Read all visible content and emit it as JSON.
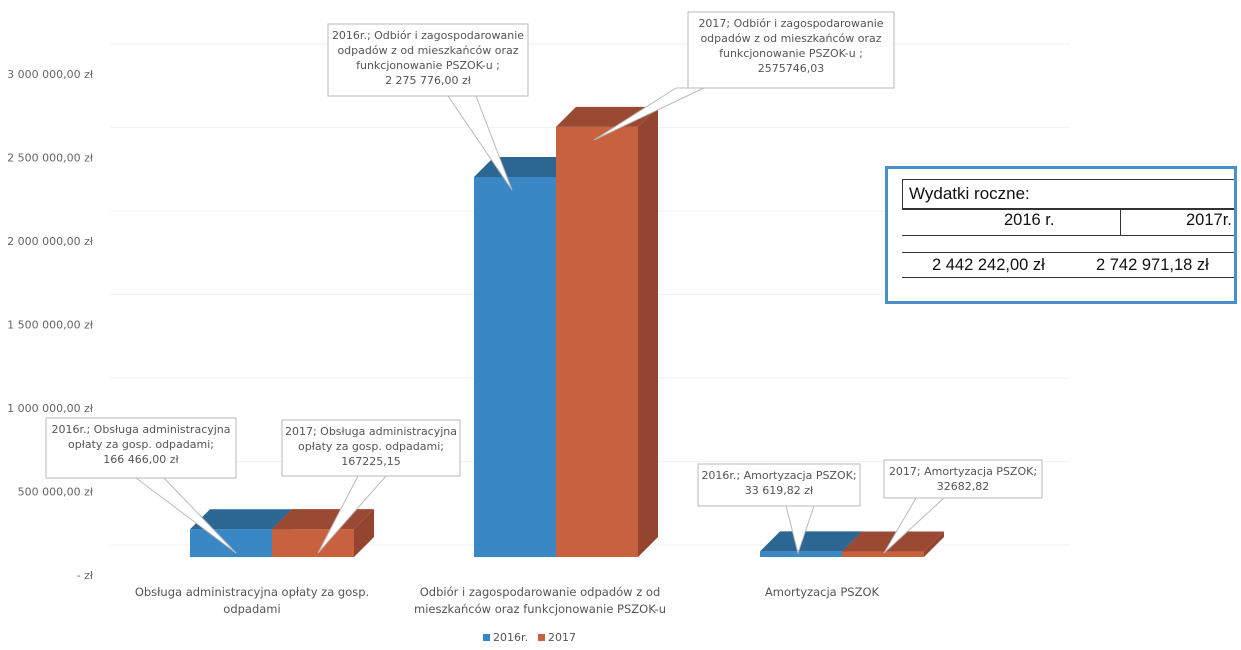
{
  "chart_data": {
    "type": "bar",
    "subtype": "3d-clustered-column",
    "categories": [
      "Obsługa administracyjna opłaty za gosp. odpadami",
      "Odbiór i zagospodarowanie odpadów z od mieszkańców oraz funkcjonowanie PSZOK-u",
      "Amortyzacja PSZOK"
    ],
    "category_labels": [
      [
        "Obsługa administracyjna opłaty za gosp.",
        "odpadami"
      ],
      [
        "Odbiór i zagospodarowanie odpadów z od",
        "mieszkańców oraz funkcjonowanie PSZOK-u"
      ],
      [
        "Amortyzacja PSZOK"
      ]
    ],
    "series": [
      {
        "name": "2016r.",
        "color": "#3a87c5",
        "top_color": "#2c6793",
        "side_color": "#2a6490",
        "values": [
          166466.0,
          2275776.0,
          33619.82
        ]
      },
      {
        "name": "2017",
        "color": "#c8623e",
        "top_color": "#9a4a33",
        "side_color": "#93452f",
        "values": [
          167225.15,
          2575746.03,
          32682.82
        ]
      }
    ],
    "ylim": [
      0,
      3000000
    ],
    "yticks": [
      "- zł",
      "500 000,00 zł",
      "1 000 000,00 zł",
      "1 500 000,00 zł",
      "2 000 000,00 zł",
      "2 500 000,00 zł",
      "3 000 000,00 zł"
    ],
    "data_labels": [
      [
        "2016r.; Obsługa administracyjna",
        "opłaty za gosp. odpadami;",
        "166 466,00 zł"
      ],
      [
        "2017; Obsługa administracyjna",
        "opłaty za gosp. odpadami;",
        "167225,15"
      ],
      [
        "2016r.; Odbiór i zagospodarowanie",
        "odpadów z od mieszkańców oraz",
        "funkcjonowanie PSZOK-u ;",
        "2 275 776,00 zł"
      ],
      [
        "2017; Odbiór i zagospodarowanie",
        "odpadów z od mieszkańców oraz",
        "funkcjonowanie PSZOK-u ;",
        "2575746,03"
      ],
      [
        "2016r.; Amortyzacja PSZOK;",
        "33 619,82 zł"
      ],
      [
        "2017; Amortyzacja PSZOK;",
        "32682,82"
      ]
    ],
    "legend_position": "bottom",
    "grid": true
  },
  "summary": {
    "title": "Wydatki roczne:",
    "headers": [
      "2016 r.",
      "2017r."
    ],
    "values": [
      "2 442 242,00 zł",
      "2 742 971,18 zł"
    ]
  }
}
